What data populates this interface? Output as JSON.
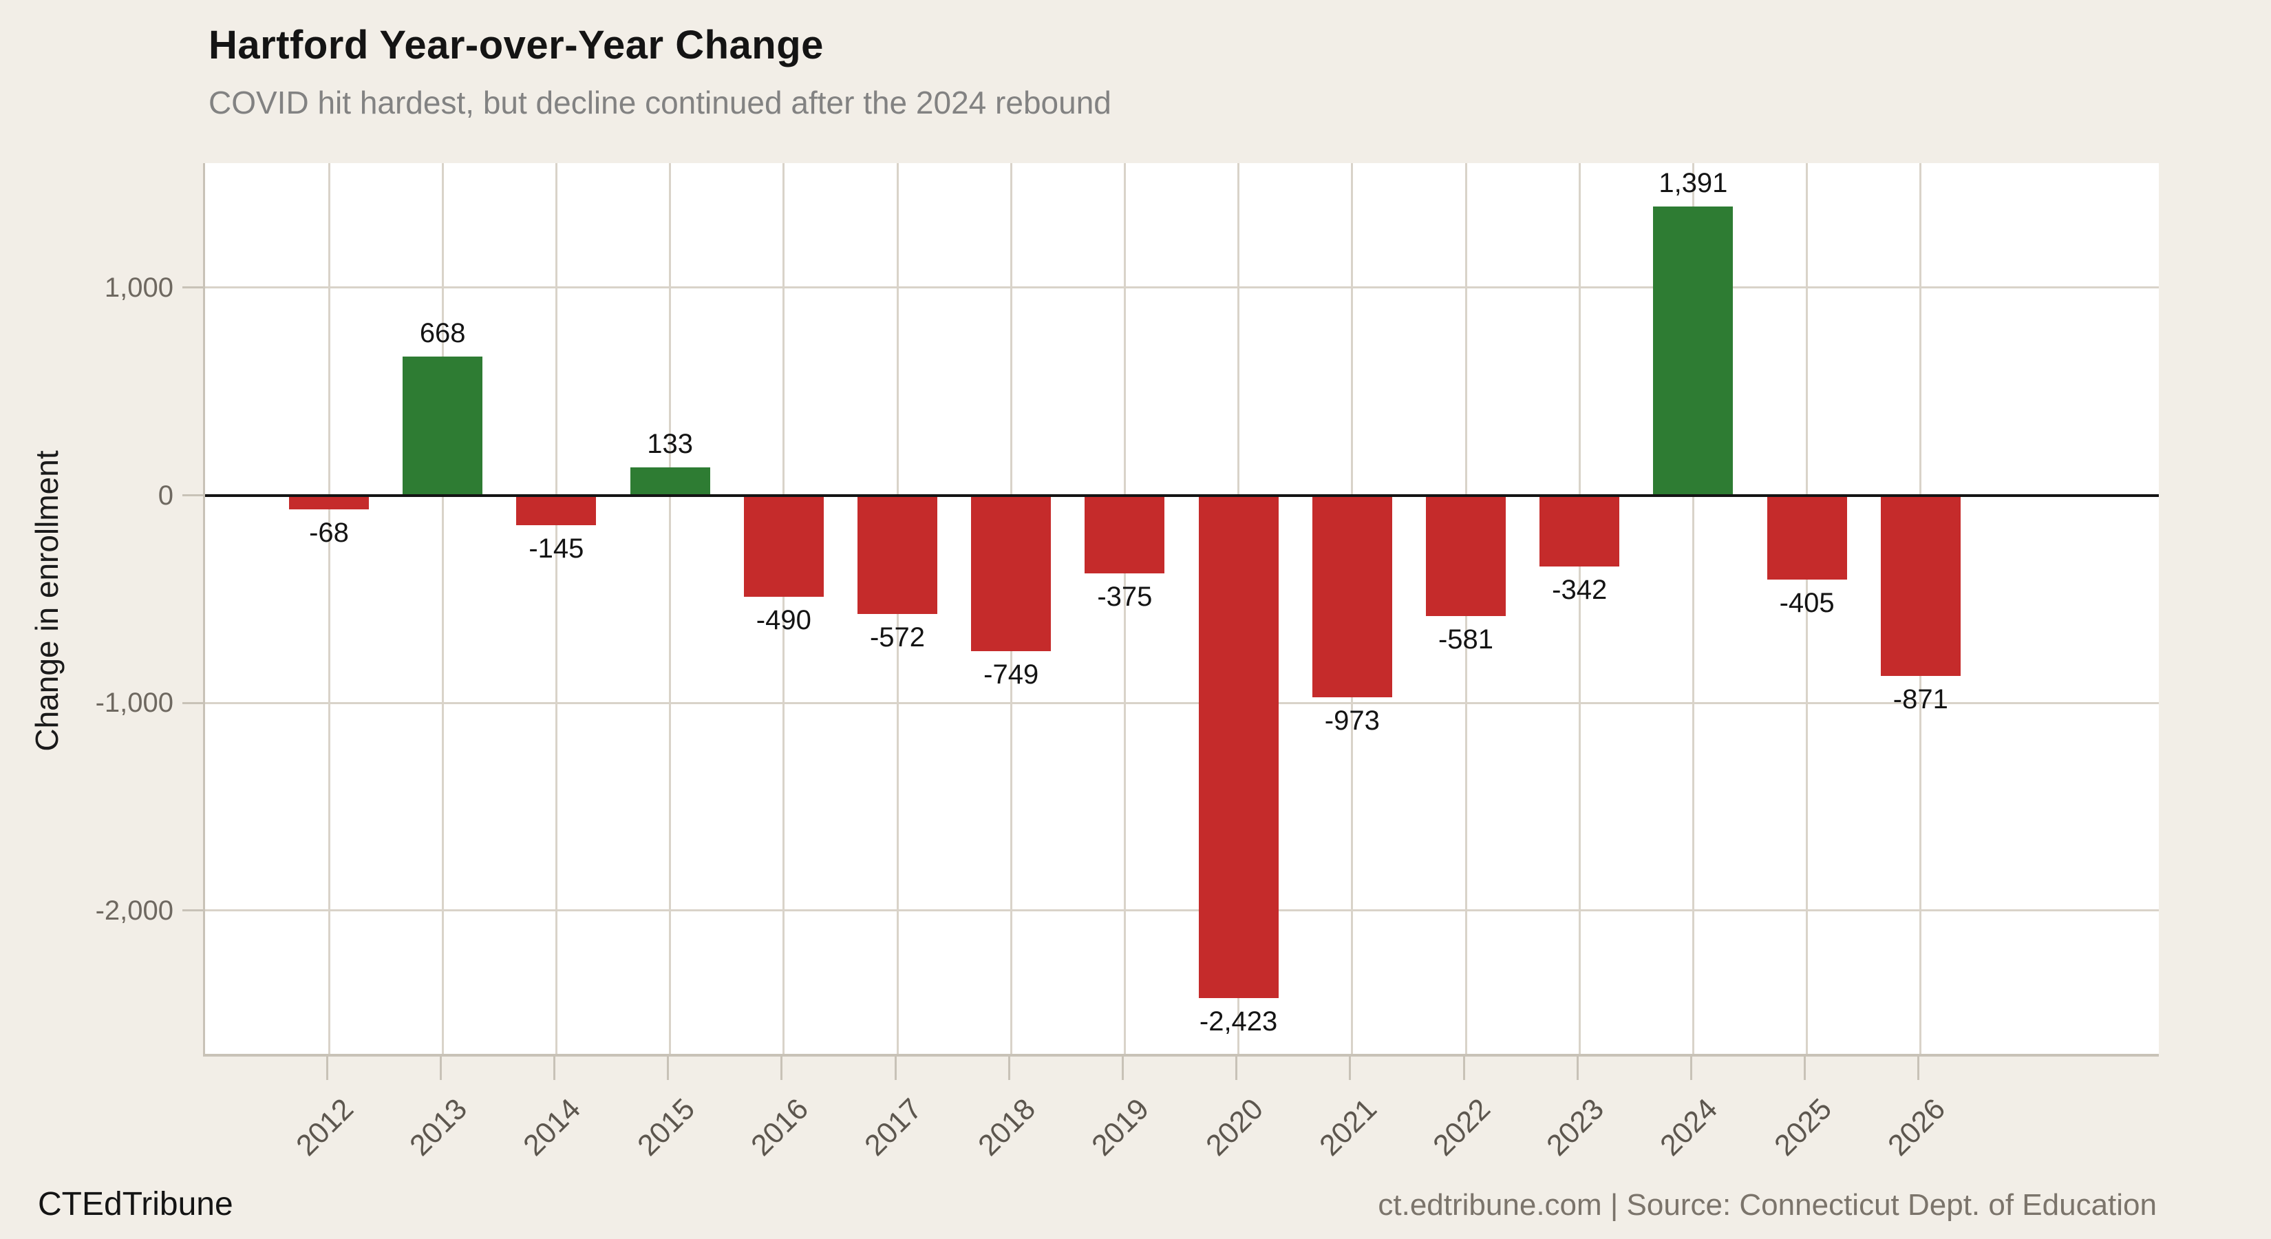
{
  "header": {
    "title": "Hartford Year-over-Year Change",
    "subtitle": "COVID hit hardest, but decline continued after the 2024 rebound"
  },
  "footer": {
    "brand": "CTEdTribune",
    "source": "ct.edtribune.com | Source: Connecticut Dept. of Education"
  },
  "colors": {
    "positive_bar": "#2e7c33",
    "negative_bar": "#c52b2b",
    "background": "#f2eee7",
    "plot_background": "#ffffff",
    "gridline": "#d9d3c9",
    "axis_line": "#c8c2b7",
    "zero_line": "#141414"
  },
  "chart_data": {
    "type": "bar",
    "title": "Hartford Year-over-Year Change",
    "subtitle": "COVID hit hardest, but decline continued after the 2024 rebound",
    "categories": [
      "2012",
      "2013",
      "2014",
      "2015",
      "2016",
      "2017",
      "2018",
      "2019",
      "2020",
      "2021",
      "2022",
      "2023",
      "2024",
      "2025",
      "2026"
    ],
    "values": [
      -68,
      668,
      -145,
      133,
      -490,
      -572,
      -749,
      -375,
      -2423,
      -973,
      -581,
      -342,
      1391,
      -405,
      -871
    ],
    "value_labels": [
      "-68",
      "668",
      "-145",
      "133",
      "-490",
      "-572",
      "-749",
      "-375",
      "-2,423",
      "-973",
      "-581",
      "-342",
      "1,391",
      "-405",
      "-871"
    ],
    "xlabel": "",
    "ylabel": "Change in enrollment",
    "ylim": [
      -2690,
      1600
    ],
    "yticks": [
      {
        "value": 1000,
        "label": "1,000"
      },
      {
        "value": 0,
        "label": "0"
      },
      {
        "value": -1000,
        "label": "-1,000"
      },
      {
        "value": -2000,
        "label": "-2,000"
      }
    ],
    "grid": "on",
    "legend": "none",
    "positive_color": "#2e7c33",
    "negative_color": "#c52b2b"
  }
}
